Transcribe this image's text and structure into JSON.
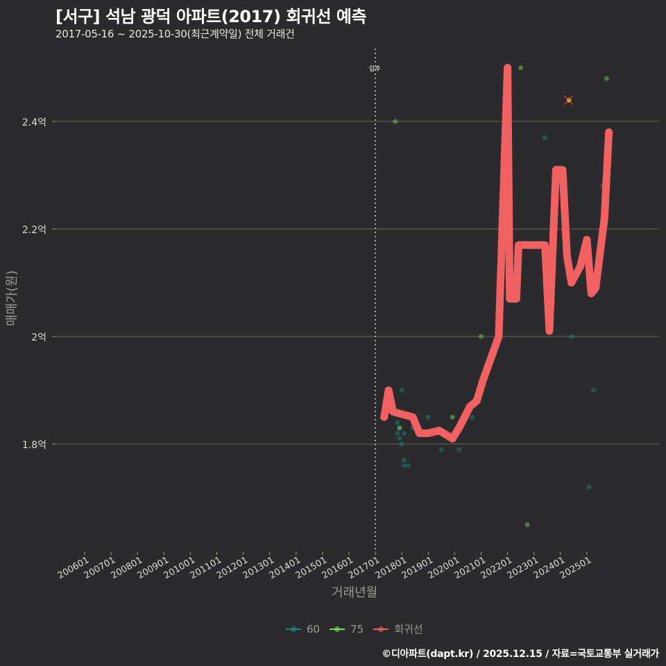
{
  "header": {
    "title": "[서구] 석남 광덕 아파트(2017) 회귀선 예측",
    "subtitle": "2017-05-16 ~ 2025-10-30(최근계약일) 전체 거래건"
  },
  "axes": {
    "xlabel": "거래년월",
    "ylabel": "매매가(원)",
    "yticks": [
      "2.4억",
      "2.2억",
      "2억",
      "1.8억"
    ],
    "xticks": [
      "200601",
      "200701",
      "200801",
      "200901",
      "201001",
      "201101",
      "201201",
      "201301",
      "201401",
      "201501",
      "201601",
      "201701",
      "201801",
      "201901",
      "202001",
      "202101",
      "202201",
      "202301",
      "202401",
      "202501"
    ]
  },
  "annotation": {
    "label": "입주",
    "x": "201705"
  },
  "legend": {
    "items": [
      {
        "label": "60",
        "color": "#1f8a80"
      },
      {
        "label": "75",
        "color": "#7ddc5c"
      },
      {
        "label": "회귀선",
        "color": "#f26161"
      }
    ]
  },
  "caption": "©디아파트(dapt.kr) / 2025.12.15 / 자료=국토교통부 실거래가",
  "colors": {
    "background": "#2b2a2c",
    "grid": "#5a5a5a",
    "regression": "#f26161",
    "s60": "#1f8a80",
    "s75": "#7ddc5c"
  },
  "chart_data": {
    "type": "scatter",
    "title": "[서구] 석남 광덕 아파트(2017) 회귀선 예측",
    "subtitle": "2017-05-16 ~ 2025-10-30(최근계약일) 전체 거래건",
    "xlabel": "거래년월",
    "ylabel": "매매가(원)",
    "x_range": [
      "200601",
      "202512"
    ],
    "ylim": [
      1.6,
      2.52
    ],
    "y_unit": "억",
    "grid": true,
    "legend_position": "bottom",
    "series": [
      {
        "name": "60",
        "type": "scatter",
        "points": [
          [
            "2017-11",
            1.84
          ],
          [
            "2017-11",
            1.82
          ],
          [
            "2017-12",
            1.83
          ],
          [
            "2017-12",
            1.81
          ],
          [
            "2018-01",
            1.8
          ],
          [
            "2018-01",
            1.9
          ],
          [
            "2018-02",
            1.82
          ],
          [
            "2018-02",
            1.77
          ],
          [
            "2018-02",
            1.76
          ],
          [
            "2018-04",
            1.76
          ],
          [
            "2018-06",
            1.83
          ],
          [
            "2019-01",
            1.85
          ],
          [
            "2019-07",
            1.79
          ],
          [
            "2020-03",
            1.79
          ],
          [
            "2020-09",
            1.85
          ],
          [
            "2023-06",
            2.37
          ],
          [
            "2024-06",
            2.0
          ],
          [
            "2025-02",
            1.72
          ],
          [
            "2025-04",
            1.9
          ],
          [
            "2025-08",
            2.28
          ]
        ]
      },
      {
        "name": "75",
        "type": "scatter",
        "points": [
          [
            "2017-10",
            2.4
          ],
          [
            "2017-11",
            1.86
          ],
          [
            "2017-12",
            1.83
          ],
          [
            "2019-12",
            1.85
          ],
          [
            "2021-01",
            2.0
          ],
          [
            "2022-07",
            2.5
          ],
          [
            "2022-10",
            1.65
          ],
          [
            "2024-05",
            2.44
          ],
          [
            "2025-10",
            2.48
          ]
        ]
      },
      {
        "name": "회귀선",
        "type": "line",
        "points": [
          [
            "2017-05",
            1.85
          ],
          [
            "2017-07",
            1.9
          ],
          [
            "2017-09",
            1.86
          ],
          [
            "2018-06",
            1.85
          ],
          [
            "2018-09",
            1.82
          ],
          [
            "2019-01",
            1.82
          ],
          [
            "2019-06",
            1.825
          ],
          [
            "2019-12",
            1.81
          ],
          [
            "2020-03",
            1.83
          ],
          [
            "2020-08",
            1.87
          ],
          [
            "2020-11",
            1.88
          ],
          [
            "2021-02",
            1.92
          ],
          [
            "2021-09",
            2.0
          ],
          [
            "2022-01",
            2.5
          ],
          [
            "2022-02",
            2.07
          ],
          [
            "2022-05",
            2.07
          ],
          [
            "2022-06",
            2.17
          ],
          [
            "2023-06",
            2.17
          ],
          [
            "2023-08",
            2.01
          ],
          [
            "2023-11",
            2.31
          ],
          [
            "2024-02",
            2.31
          ],
          [
            "2024-04",
            2.15
          ],
          [
            "2024-06",
            2.1
          ],
          [
            "2024-10",
            2.13
          ],
          [
            "2025-01",
            2.18
          ],
          [
            "2025-03",
            2.08
          ],
          [
            "2025-05",
            2.09
          ],
          [
            "2025-09",
            2.22
          ],
          [
            "2025-11",
            2.38
          ]
        ]
      }
    ],
    "annotations": [
      {
        "text": "입주",
        "x": "2017-05",
        "style": "dotted vertical line"
      },
      {
        "text": "x marker",
        "x": "2024-05",
        "y": 2.44
      }
    ]
  }
}
